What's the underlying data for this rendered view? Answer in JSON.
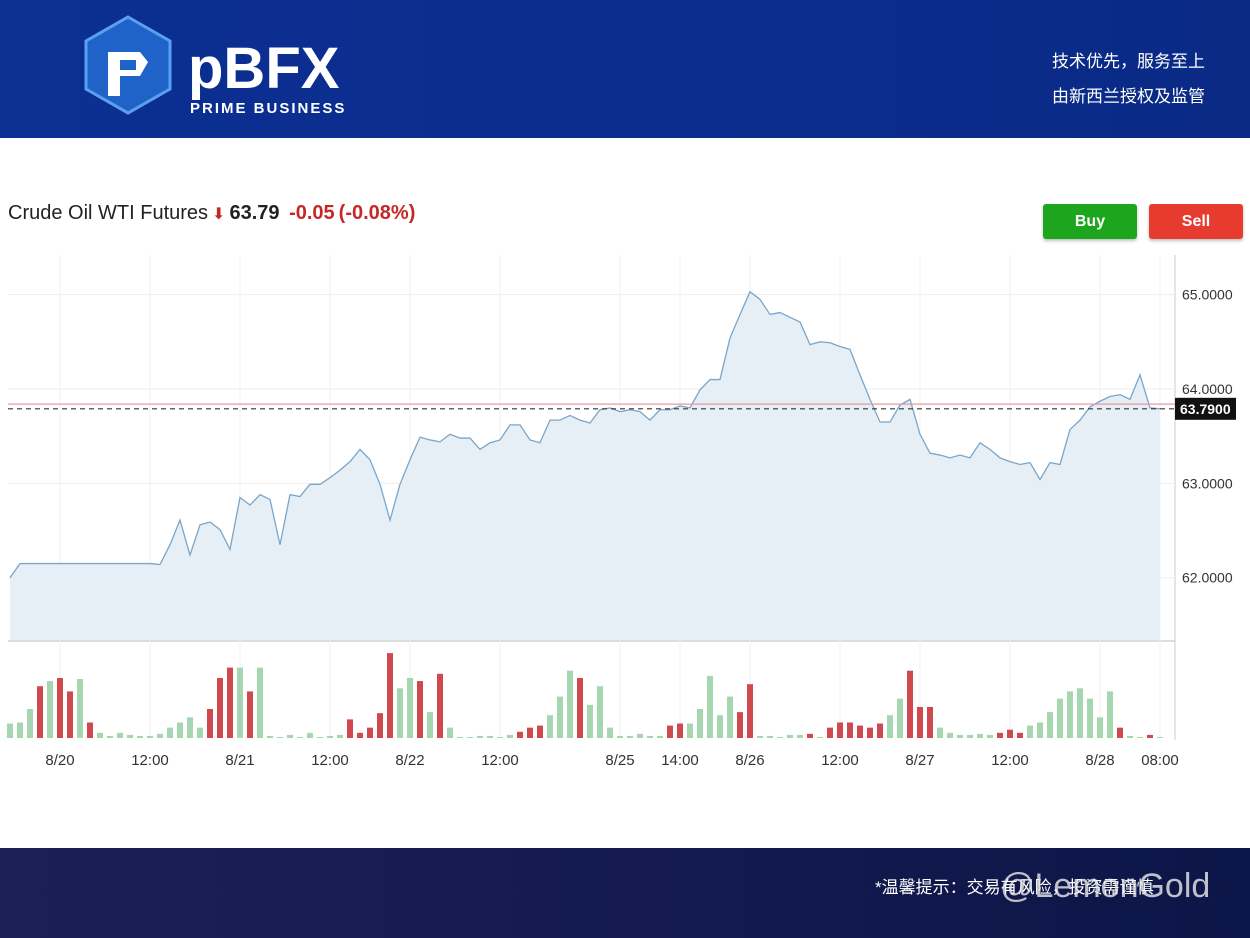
{
  "header": {
    "logo": "pBFX",
    "logo_sub": "PRIME BUSINESS",
    "slogan_1": "技术优先，服务至上",
    "slogan_2": "由新西兰授权及监管"
  },
  "quote": {
    "name": "Crude Oil WTI Futures",
    "price": "63.79",
    "change": "-0.05",
    "change_pct": "(-0.08%)"
  },
  "buttons": {
    "buy": "Buy",
    "sell": "Sell"
  },
  "chart_data": [
    {
      "type": "line",
      "categories": [
        null,
        null,
        null,
        null,
        null,
        "8/20",
        null,
        null,
        null,
        null,
        null,
        null,
        null,
        null,
        "12:00",
        null,
        null,
        null,
        null,
        null,
        null,
        null,
        null,
        "8/21",
        null,
        null,
        null,
        null,
        null,
        null,
        null,
        null,
        "12:00",
        null,
        null,
        null,
        null,
        null,
        null,
        null,
        "8/22",
        null,
        null,
        null,
        null,
        null,
        null,
        null,
        null,
        "12:00",
        null,
        null,
        null,
        null,
        null,
        null,
        null,
        null,
        null,
        null,
        null,
        "8/25",
        null,
        null,
        null,
        null,
        null,
        "14:00",
        null,
        null,
        null,
        null,
        null,
        null,
        "8/26",
        null,
        null,
        null,
        null,
        null,
        null,
        null,
        null,
        "12:00",
        null,
        null,
        null,
        null,
        null,
        null,
        null,
        "8/27",
        null,
        null,
        null,
        null,
        null,
        null,
        null,
        null,
        "12:00",
        null,
        null,
        null,
        null,
        null,
        null,
        null,
        null,
        "8/28",
        null,
        null,
        null,
        null,
        null,
        "08:00"
      ],
      "series": [
        {
          "color": "#7aa6c9",
          "area_color": "#e7eff6",
          "values": [
            62.0,
            62.15,
            62.15,
            62.15,
            62.15,
            62.15,
            62.15,
            62.15,
            62.15,
            62.15,
            62.15,
            62.15,
            62.15,
            62.15,
            62.15,
            62.14,
            62.35,
            62.61,
            62.24,
            62.56,
            62.59,
            62.51,
            62.3,
            62.85,
            62.77,
            62.88,
            62.83,
            62.35,
            62.88,
            62.86,
            62.99,
            62.99,
            63.06,
            63.14,
            63.23,
            63.36,
            63.25,
            62.99,
            62.61,
            62.99,
            63.25,
            63.49,
            63.46,
            63.44,
            63.52,
            63.48,
            63.48,
            63.36,
            63.43,
            63.46,
            63.62,
            63.62,
            63.46,
            63.43,
            63.67,
            63.67,
            63.72,
            63.67,
            63.64,
            63.78,
            63.8,
            63.76,
            63.78,
            63.76,
            63.67,
            63.78,
            63.78,
            63.82,
            63.8,
            63.99,
            64.1,
            64.1,
            64.54,
            64.79,
            65.03,
            64.95,
            64.79,
            64.81,
            64.76,
            64.71,
            64.47,
            64.5,
            64.49,
            64.45,
            64.42,
            64.15,
            63.89,
            63.65,
            63.65,
            63.83,
            63.89,
            63.52,
            63.32,
            63.3,
            63.27,
            63.3,
            63.27,
            63.43,
            63.36,
            63.27,
            63.23,
            63.2,
            63.22,
            63.04,
            63.22,
            63.2,
            63.57,
            63.67,
            63.81,
            63.87,
            63.92,
            63.94,
            63.89,
            64.15,
            63.8,
            63.79
          ]
        }
      ],
      "ylim": [
        61.34,
        65.42
      ],
      "yticks": [
        {
          "value": 62,
          "label": "62.0000"
        },
        {
          "value": 63,
          "label": "63.0000"
        },
        {
          "value": 64,
          "label": "64.0000"
        },
        {
          "value": 65,
          "label": "65.0000"
        }
      ],
      "last_value": {
        "value": 63.79,
        "label": "63.7900"
      },
      "prev_close": 63.84,
      "prev_close_color": "#e59aa0",
      "grid": true
    },
    {
      "type": "bar",
      "values": [
        14,
        15,
        28,
        50,
        55,
        58,
        45,
        57,
        15,
        5,
        2,
        5,
        3,
        2,
        2,
        4,
        10,
        15,
        20,
        10,
        28,
        58,
        68,
        68,
        45,
        68,
        2,
        1,
        3,
        1,
        5,
        1,
        2,
        3,
        18,
        5,
        10,
        24,
        82,
        48,
        58,
        55,
        25,
        62,
        10,
        1,
        1,
        2,
        2,
        1,
        3,
        6,
        10,
        12,
        22,
        40,
        65,
        58,
        32,
        50,
        10,
        2,
        2,
        4,
        2,
        2,
        12,
        14,
        14,
        28,
        60,
        22,
        40,
        25,
        52,
        2,
        2,
        1,
        3,
        3,
        4,
        1,
        10,
        15,
        15,
        12,
        10,
        14,
        22,
        38,
        65,
        30,
        30,
        10,
        5,
        3,
        3,
        4,
        3,
        5,
        8,
        5,
        12,
        15,
        25,
        38,
        45,
        48,
        38,
        20,
        45,
        10,
        2,
        1,
        3,
        1
      ],
      "colors": [
        "#a5d6b0",
        "#a5d6b0",
        "#a5d6b0",
        "#d0494e",
        "#a5d6b0",
        "#d0494e",
        "#d0494e",
        "#a5d6b0",
        "#d0494e",
        "#a5d6b0",
        "#a5d6b0",
        "#a5d6b0",
        "#a5d6b0",
        "#a5d6b0",
        "#a5d6b0",
        "#a5d6b0",
        "#a5d6b0",
        "#a5d6b0",
        "#a5d6b0",
        "#a5d6b0",
        "#d0494e",
        "#d0494e",
        "#d0494e",
        "#a5d6b0",
        "#d0494e",
        "#a5d6b0",
        "#a5d6b0",
        "#a5d6b0",
        "#a5d6b0",
        "#a5d6b0",
        "#a5d6b0",
        "#a5d6b0",
        "#a5d6b0",
        "#a5d6b0",
        "#d0494e",
        "#d0494e",
        "#d0494e",
        "#d0494e",
        "#d0494e",
        "#a5d6b0",
        "#a5d6b0",
        "#d0494e",
        "#a5d6b0",
        "#d0494e",
        "#a5d6b0",
        "#a5d6b0",
        "#a5d6b0",
        "#a5d6b0",
        "#a5d6b0",
        "#a5d6b0",
        "#a5d6b0",
        "#d0494e",
        "#d0494e",
        "#d0494e",
        "#a5d6b0",
        "#a5d6b0",
        "#a5d6b0",
        "#d0494e",
        "#a5d6b0",
        "#a5d6b0",
        "#a5d6b0",
        "#a5d6b0",
        "#a5d6b0",
        "#a5d6b0",
        "#a5d6b0",
        "#a5d6b0",
        "#d0494e",
        "#d0494e",
        "#a5d6b0",
        "#a5d6b0",
        "#a5d6b0",
        "#a5d6b0",
        "#a5d6b0",
        "#d0494e",
        "#d0494e",
        "#a5d6b0",
        "#a5d6b0",
        "#a5d6b0",
        "#a5d6b0",
        "#a5d6b0",
        "#d0494e",
        "#a5d6b0",
        "#d0494e",
        "#d0494e",
        "#d0494e",
        "#d0494e",
        "#d0494e",
        "#d0494e",
        "#a5d6b0",
        "#a5d6b0",
        "#d0494e",
        "#d0494e",
        "#d0494e",
        "#a5d6b0",
        "#a5d6b0",
        "#a5d6b0",
        "#a5d6b0",
        "#a5d6b0",
        "#a5d6b0",
        "#d0494e",
        "#d0494e",
        "#d0494e",
        "#a5d6b0",
        "#a5d6b0",
        "#a5d6b0",
        "#a5d6b0",
        "#a5d6b0",
        "#a5d6b0",
        "#a5d6b0",
        "#a5d6b0",
        "#a5d6b0",
        "#d0494e",
        "#a5d6b0",
        "#a5d6b0",
        "#d0494e",
        "#a5d6b0"
      ],
      "ylim": [
        0,
        85
      ]
    }
  ],
  "footer": {
    "notice": "*温馨提示：交易有风险，投资需谨慎",
    "watermark": "@LemonGold"
  }
}
